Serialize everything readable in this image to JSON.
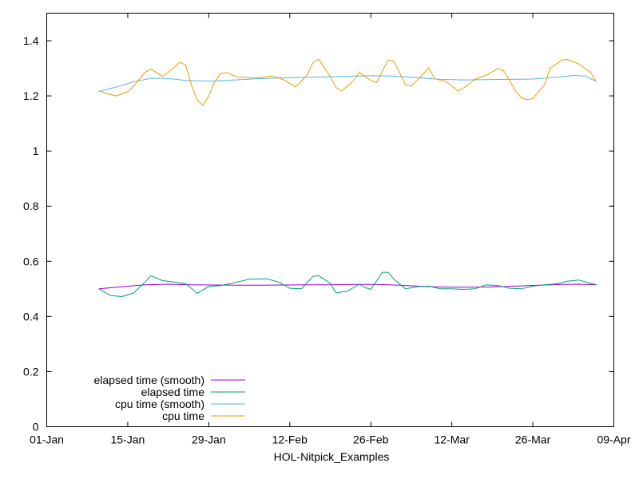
{
  "chart_data": {
    "type": "line",
    "title": "",
    "xlabel": "HOL-Nitpick_Examples",
    "ylabel": "",
    "x_ticks": [
      "01-Jan",
      "15-Jan",
      "29-Jan",
      "12-Feb",
      "26-Feb",
      "12-Mar",
      "26-Mar",
      "09-Apr"
    ],
    "y_ticks": [
      "0",
      "0.2",
      "0.4",
      "0.6",
      "0.8",
      "1",
      "1.2",
      "1.4"
    ],
    "xlim": [
      "01-Jan",
      "09-Apr"
    ],
    "ylim": [
      0,
      1.5
    ],
    "grid": false,
    "legend_position": "bottom-left",
    "series": [
      {
        "name": "elapsed time (smooth)",
        "color": "#9400d3",
        "points": [
          [
            "10-Jan",
            0.5
          ],
          [
            "14-Jan",
            0.508
          ],
          [
            "18-Jan",
            0.515
          ],
          [
            "22-Jan",
            0.517
          ],
          [
            "26-Jan",
            0.515
          ],
          [
            "30-Jan",
            0.514
          ],
          [
            "03-Feb",
            0.513
          ],
          [
            "07-Feb",
            0.513
          ],
          [
            "11-Feb",
            0.514
          ],
          [
            "15-Feb",
            0.515
          ],
          [
            "19-Feb",
            0.515
          ],
          [
            "23-Feb",
            0.516
          ],
          [
            "27-Feb",
            0.516
          ],
          [
            "03-Mar",
            0.513
          ],
          [
            "07-Mar",
            0.509
          ],
          [
            "11-Mar",
            0.506
          ],
          [
            "15-Mar",
            0.506
          ],
          [
            "19-Mar",
            0.507
          ],
          [
            "23-Mar",
            0.51
          ],
          [
            "27-Mar",
            0.513
          ],
          [
            "31-Mar",
            0.516
          ],
          [
            "03-Apr",
            0.517
          ],
          [
            "06-Apr",
            0.515
          ]
        ]
      },
      {
        "name": "elapsed time",
        "color": "#009e73",
        "points": [
          [
            "10-Jan",
            0.5
          ],
          [
            "12-Jan",
            0.476
          ],
          [
            "14-Jan",
            0.472
          ],
          [
            "16-Jan",
            0.485
          ],
          [
            "18-Jan",
            0.525
          ],
          [
            "19-Jan",
            0.548
          ],
          [
            "21-Jan",
            0.53
          ],
          [
            "23-Jan",
            0.525
          ],
          [
            "25-Jan",
            0.519
          ],
          [
            "27-Jan",
            0.484
          ],
          [
            "29-Jan",
            0.509
          ],
          [
            "31-Jan",
            0.512
          ],
          [
            "02-Feb",
            0.52
          ],
          [
            "05-Feb",
            0.535
          ],
          [
            "08-Feb",
            0.537
          ],
          [
            "10-Feb",
            0.525
          ],
          [
            "12-Feb",
            0.502
          ],
          [
            "14-Feb",
            0.5
          ],
          [
            "16-Feb",
            0.545
          ],
          [
            "17-Feb",
            0.548
          ],
          [
            "19-Feb",
            0.52
          ],
          [
            "20-Feb",
            0.485
          ],
          [
            "22-Feb",
            0.492
          ],
          [
            "24-Feb",
            0.517
          ],
          [
            "25-Feb",
            0.505
          ],
          [
            "26-Feb",
            0.498
          ],
          [
            "28-Feb",
            0.56
          ],
          [
            "01-Mar",
            0.56
          ],
          [
            "02-Mar",
            0.535
          ],
          [
            "04-Mar",
            0.5
          ],
          [
            "06-Mar",
            0.508
          ],
          [
            "08-Mar",
            0.51
          ],
          [
            "10-Mar",
            0.5
          ],
          [
            "12-Mar",
            0.5
          ],
          [
            "14-Mar",
            0.498
          ],
          [
            "16-Mar",
            0.5
          ],
          [
            "18-Mar",
            0.515
          ],
          [
            "20-Mar",
            0.512
          ],
          [
            "22-Mar",
            0.502
          ],
          [
            "24-Mar",
            0.5
          ],
          [
            "26-Mar",
            0.51
          ],
          [
            "28-Mar",
            0.515
          ],
          [
            "30-Mar",
            0.518
          ],
          [
            "01-Apr",
            0.528
          ],
          [
            "03-Apr",
            0.532
          ],
          [
            "05-Apr",
            0.52
          ],
          [
            "06-Apr",
            0.515
          ]
        ]
      },
      {
        "name": "cpu time (smooth)",
        "color": "#56b4e9",
        "points": [
          [
            "10-Jan",
            1.216
          ],
          [
            "13-Jan",
            1.232
          ],
          [
            "16-Jan",
            1.251
          ],
          [
            "19-Jan",
            1.264
          ],
          [
            "22-Jan",
            1.263
          ],
          [
            "25-Jan",
            1.256
          ],
          [
            "29-Jan",
            1.254
          ],
          [
            "02-Feb",
            1.257
          ],
          [
            "06-Feb",
            1.262
          ],
          [
            "10-Feb",
            1.265
          ],
          [
            "14-Feb",
            1.267
          ],
          [
            "18-Feb",
            1.269
          ],
          [
            "22-Feb",
            1.271
          ],
          [
            "26-Feb",
            1.273
          ],
          [
            "02-Mar",
            1.272
          ],
          [
            "06-Mar",
            1.266
          ],
          [
            "10-Mar",
            1.26
          ],
          [
            "14-Mar",
            1.258
          ],
          [
            "18-Mar",
            1.259
          ],
          [
            "22-Mar",
            1.26
          ],
          [
            "26-Mar",
            1.261
          ],
          [
            "30-Mar",
            1.268
          ],
          [
            "02-Apr",
            1.274
          ],
          [
            "04-Apr",
            1.272
          ],
          [
            "06-Apr",
            1.252
          ]
        ]
      },
      {
        "name": "cpu time",
        "color": "#e69f00",
        "points": [
          [
            "10-Jan",
            1.218
          ],
          [
            "12-Jan",
            1.205
          ],
          [
            "13-Jan",
            1.2
          ],
          [
            "15-Jan",
            1.215
          ],
          [
            "16-Jan",
            1.235
          ],
          [
            "18-Jan",
            1.285
          ],
          [
            "19-Jan",
            1.298
          ],
          [
            "21-Jan",
            1.27
          ],
          [
            "22-Jan",
            1.285
          ],
          [
            "24-Jan",
            1.322
          ],
          [
            "25-Jan",
            1.312
          ],
          [
            "26-Jan",
            1.24
          ],
          [
            "27-Jan",
            1.185
          ],
          [
            "28-Jan",
            1.165
          ],
          [
            "29-Jan",
            1.2
          ],
          [
            "30-Jan",
            1.25
          ],
          [
            "31-Jan",
            1.28
          ],
          [
            "01-Feb",
            1.285
          ],
          [
            "03-Feb",
            1.268
          ],
          [
            "06-Feb",
            1.265
          ],
          [
            "09-Feb",
            1.272
          ],
          [
            "11-Feb",
            1.258
          ],
          [
            "13-Feb",
            1.232
          ],
          [
            "15-Feb",
            1.275
          ],
          [
            "16-Feb",
            1.32
          ],
          [
            "17-Feb",
            1.333
          ],
          [
            "19-Feb",
            1.27
          ],
          [
            "20-Feb",
            1.23
          ],
          [
            "21-Feb",
            1.218
          ],
          [
            "23-Feb",
            1.255
          ],
          [
            "24-Feb",
            1.285
          ],
          [
            "26-Feb",
            1.256
          ],
          [
            "27-Feb",
            1.248
          ],
          [
            "28-Feb",
            1.29
          ],
          [
            "01-Mar",
            1.33
          ],
          [
            "02-Mar",
            1.325
          ],
          [
            "04-Mar",
            1.24
          ],
          [
            "05-Mar",
            1.236
          ],
          [
            "07-Mar",
            1.278
          ],
          [
            "08-Mar",
            1.302
          ],
          [
            "09-Mar",
            1.262
          ],
          [
            "11-Mar",
            1.252
          ],
          [
            "13-Mar",
            1.218
          ],
          [
            "14-Mar",
            1.228
          ],
          [
            "16-Mar",
            1.26
          ],
          [
            "18-Mar",
            1.275
          ],
          [
            "20-Mar",
            1.3
          ],
          [
            "21-Mar",
            1.29
          ],
          [
            "23-Mar",
            1.22
          ],
          [
            "24-Mar",
            1.193
          ],
          [
            "25-Mar",
            1.186
          ],
          [
            "26-Mar",
            1.19
          ],
          [
            "28-Mar",
            1.24
          ],
          [
            "29-Mar",
            1.3
          ],
          [
            "31-Mar",
            1.33
          ],
          [
            "01-Apr",
            1.332
          ],
          [
            "03-Apr",
            1.315
          ],
          [
            "05-Apr",
            1.285
          ],
          [
            "06-Apr",
            1.25
          ]
        ]
      }
    ]
  }
}
